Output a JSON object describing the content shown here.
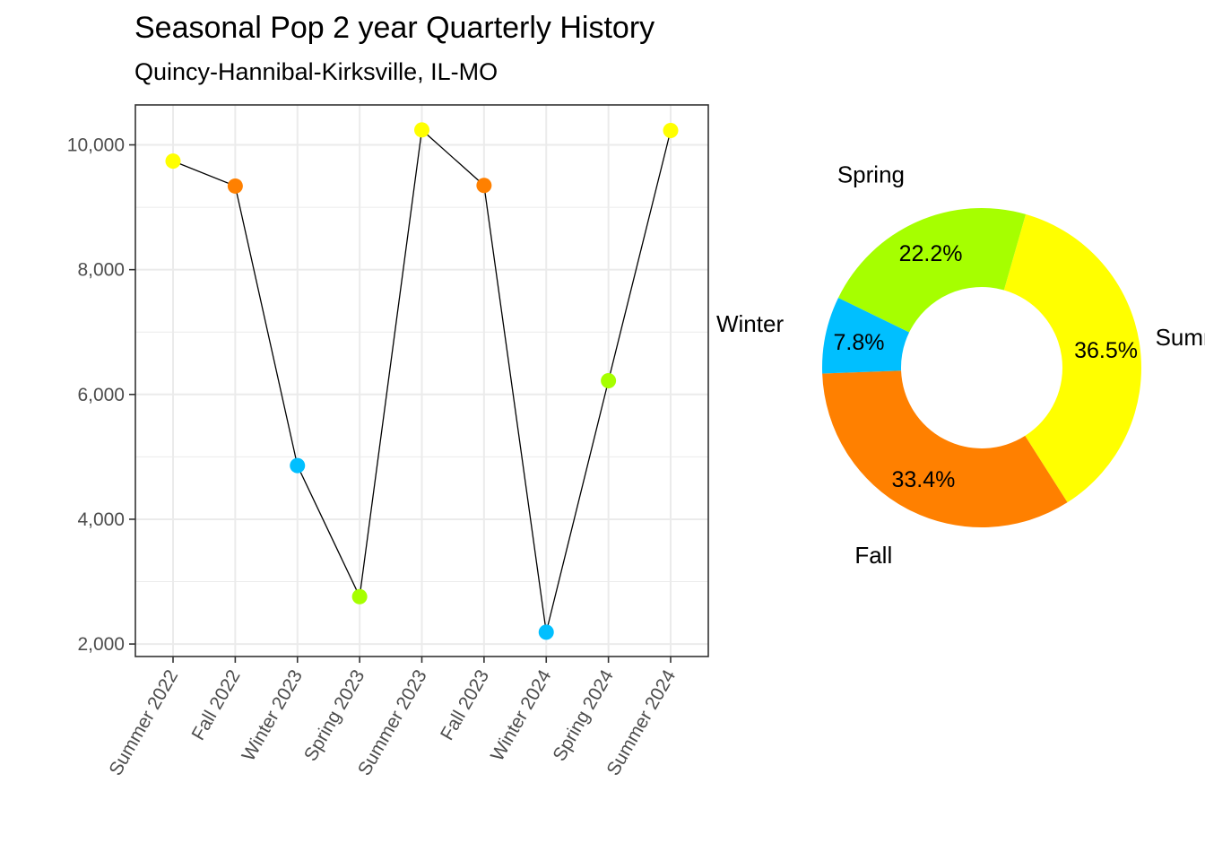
{
  "title": "Seasonal Pop 2 year Quarterly History",
  "subtitle": "Quincy-Hannibal-Kirksville, IL-MO",
  "colors": {
    "Summer": "#FFFF00",
    "Fall": "#FF8000",
    "Winter": "#00BFFF",
    "Spring": "#A6FF00"
  },
  "chart_data": [
    {
      "type": "line",
      "categories": [
        "Summer 2022",
        "Fall 2022",
        "Winter 2023",
        "Spring 2023",
        "Summer 2023",
        "Fall 2023",
        "Winter 2024",
        "Spring 2024",
        "Summer 2024"
      ],
      "seasons": [
        "Summer",
        "Fall",
        "Winter",
        "Spring",
        "Summer",
        "Fall",
        "Winter",
        "Spring",
        "Summer"
      ],
      "values": [
        9740,
        9340,
        4860,
        2760,
        10240,
        9350,
        2190,
        6220,
        10230
      ],
      "ylim": [
        1800,
        10640
      ],
      "yticks": [
        2000,
        4000,
        6000,
        8000,
        10000
      ],
      "ytick_labels": [
        "2,000",
        "4,000",
        "6,000",
        "8,000",
        "10,000"
      ],
      "minor_yticks": [
        3000,
        5000,
        7000,
        9000
      ],
      "grid": true,
      "xlabel": "",
      "ylabel": ""
    },
    {
      "type": "pie",
      "donut": true,
      "slices": [
        {
          "label": "Summer",
          "value": 36.5,
          "pct_label": "36.5%"
        },
        {
          "label": "Fall",
          "value": 33.4,
          "pct_label": "33.4%"
        },
        {
          "label": "Winter",
          "value": 7.8,
          "pct_label": "7.8%"
        },
        {
          "label": "Spring",
          "value": 22.2,
          "pct_label": "22.2%"
        }
      ]
    }
  ]
}
